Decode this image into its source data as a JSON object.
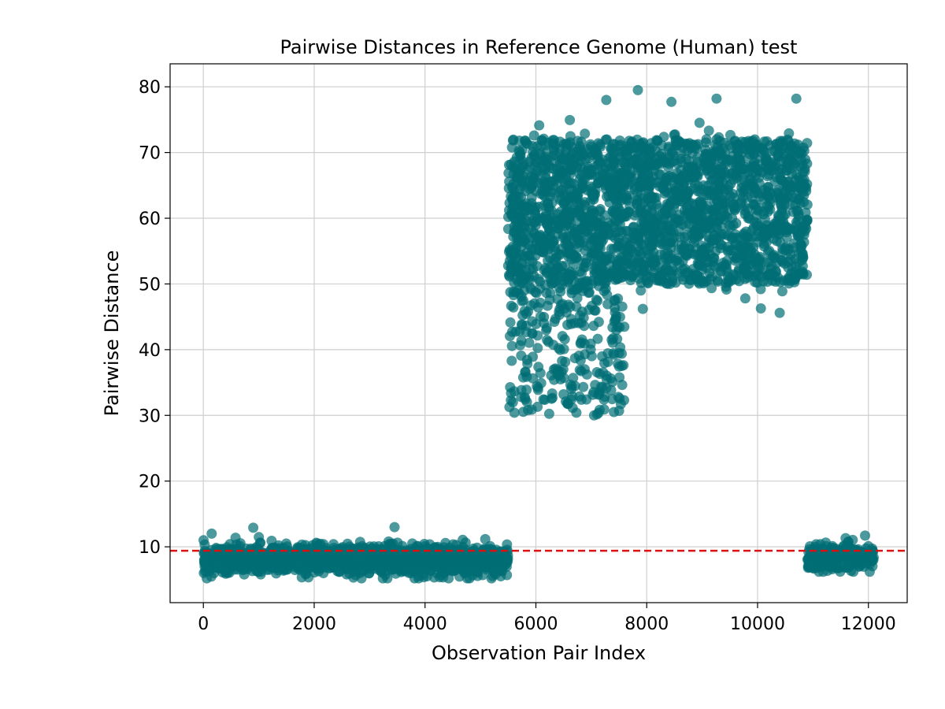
{
  "chart_data": {
    "type": "scatter",
    "title": "Pairwise Distances in Reference Genome (Human) test",
    "xlabel": "Observation Pair Index",
    "ylabel": "Pairwise Distance",
    "xlim": [
      -600,
      12700
    ],
    "ylim": [
      1.5,
      83.5
    ],
    "xticks": [
      0,
      2000,
      4000,
      6000,
      8000,
      10000,
      12000
    ],
    "yticks": [
      10,
      20,
      30,
      40,
      50,
      60,
      70,
      80
    ],
    "grid": true,
    "threshold_line": {
      "y": 9.4,
      "color": "#dd1111",
      "style": "dashed"
    },
    "point_color": "#006d75",
    "point_alpha": 0.7,
    "clusters": [
      {
        "x_range": [
          0,
          5500
        ],
        "y_center": 8.0,
        "y_spread": 1.1,
        "y_min": 5.2,
        "y_max": 13.0
      },
      {
        "x_range": [
          5500,
          10900
        ],
        "y_center": 61.0,
        "y_spread": 7.0,
        "y_min": 45.5,
        "y_max": 79.5
      },
      {
        "x_range": [
          5500,
          7600
        ],
        "y_center": 40.0,
        "y_spread": 4.0,
        "y_min": 30.0,
        "y_max": 50.0
      },
      {
        "x_range": [
          10900,
          12100
        ],
        "y_center": 8.5,
        "y_spread": 0.9,
        "y_min": 6.2,
        "y_max": 11.7
      }
    ],
    "outliers": [
      {
        "x": 900,
        "y": 12.9
      },
      {
        "x": 150,
        "y": 12.0
      },
      {
        "x": 3450,
        "y": 13.0
      },
      {
        "x": 7050,
        "y": 30.0
      },
      {
        "x": 6030,
        "y": 31.3
      },
      {
        "x": 5550,
        "y": 32.3
      },
      {
        "x": 7840,
        "y": 79.5
      },
      {
        "x": 7270,
        "y": 78.0
      },
      {
        "x": 9260,
        "y": 78.2
      },
      {
        "x": 10700,
        "y": 78.2
      },
      {
        "x": 11940,
        "y": 11.7
      },
      {
        "x": 10400,
        "y": 45.6
      },
      {
        "x": 7930,
        "y": 46.2
      }
    ]
  }
}
